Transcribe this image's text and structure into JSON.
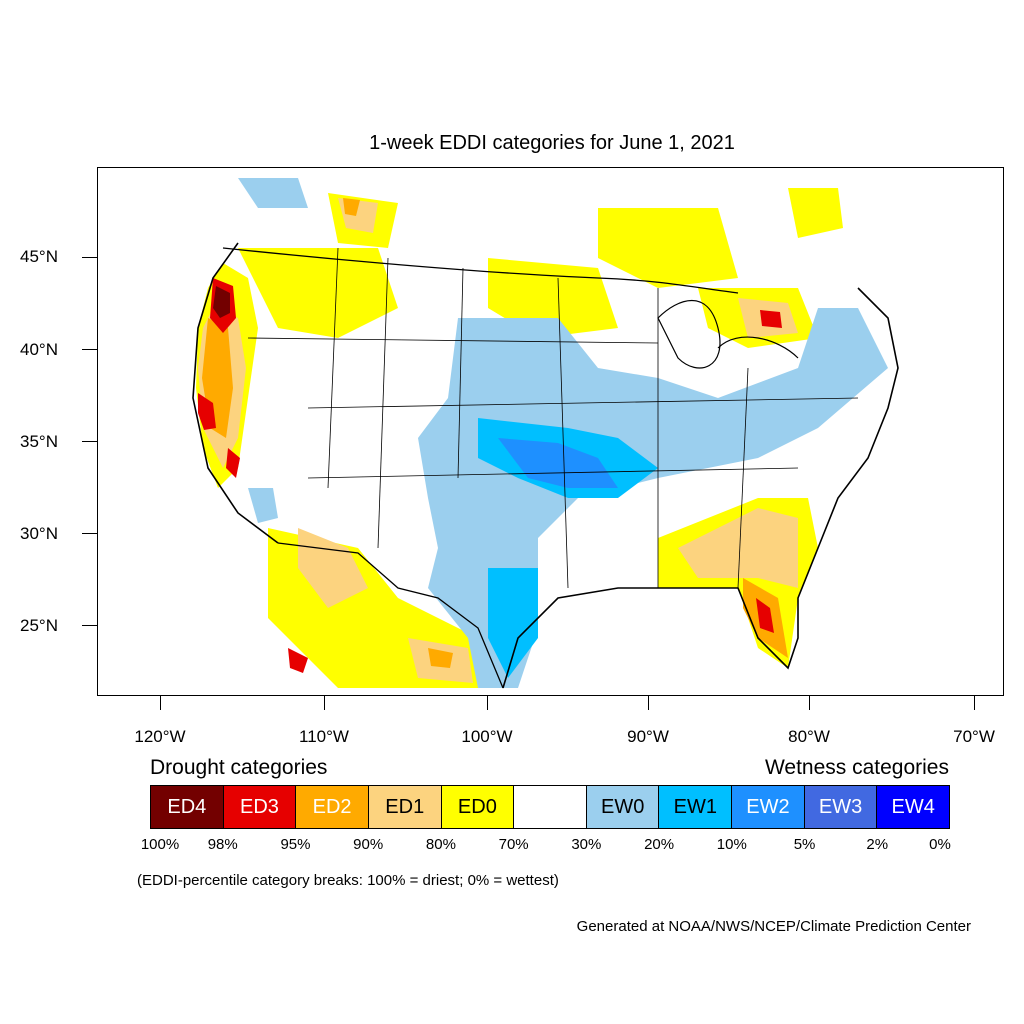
{
  "title": "1-week EDDI categories for June 1, 2021",
  "map": {
    "lat_labels": [
      "45°N",
      "40°N",
      "35°N",
      "30°N",
      "25°N"
    ],
    "lon_labels": [
      "120°W",
      "110°W",
      "100°W",
      "90°W",
      "80°W",
      "70°W"
    ]
  },
  "legend": {
    "drought_heading": "Drought categories",
    "wetness_heading": "Wetness categories",
    "categories": [
      {
        "label": "ED4",
        "color": "#730000",
        "text_color": "#ffffff"
      },
      {
        "label": "ED3",
        "color": "#e60000",
        "text_color": "#ffffff"
      },
      {
        "label": "ED2",
        "color": "#ffaa00",
        "text_color": "#ffffff"
      },
      {
        "label": "ED1",
        "color": "#fcd37f",
        "text_color": "#000000"
      },
      {
        "label": "ED0",
        "color": "#ffff00",
        "text_color": "#000000"
      },
      {
        "label": "",
        "color": "#ffffff",
        "text_color": "#000000"
      },
      {
        "label": "EW0",
        "color": "#9bcfee",
        "text_color": "#000000"
      },
      {
        "label": "EW1",
        "color": "#00bfff",
        "text_color": "#000000"
      },
      {
        "label": "EW2",
        "color": "#1e90ff",
        "text_color": "#ffffff"
      },
      {
        "label": "EW3",
        "color": "#4169e1",
        "text_color": "#ffffff"
      },
      {
        "label": "EW4",
        "color": "#0000ff",
        "text_color": "#ffffff"
      }
    ],
    "breaks": [
      "100%",
      "98%",
      "95%",
      "90%",
      "80%",
      "70%",
      "30%",
      "20%",
      "10%",
      "5%",
      "2%",
      "0%"
    ]
  },
  "note": "(EDDI-percentile category breaks: 100% = driest; 0% = wettest)",
  "credit": "Generated at NOAA/NWS/NCEP/Climate Prediction Center"
}
